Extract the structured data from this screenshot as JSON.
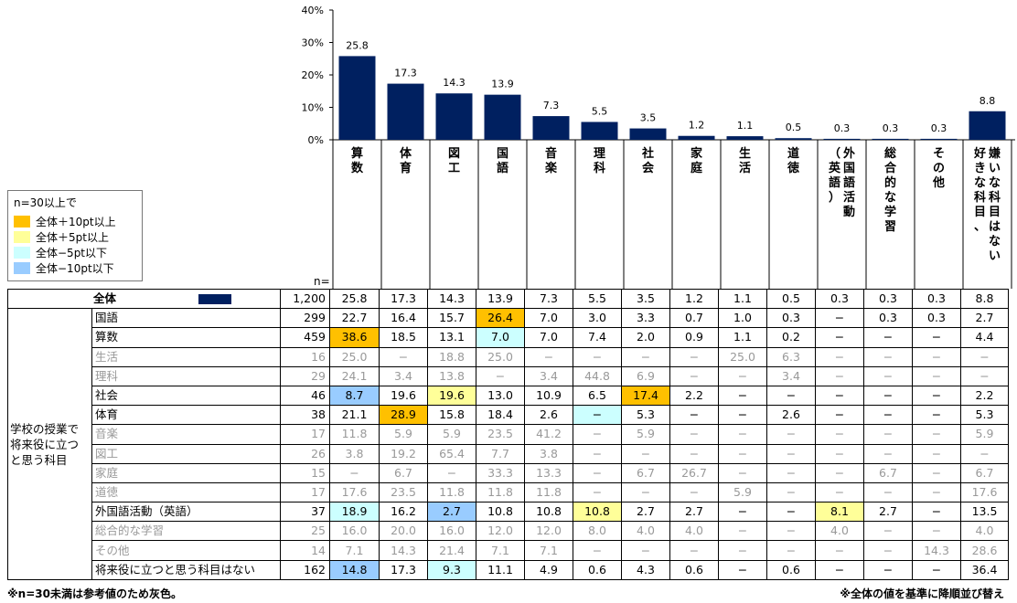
{
  "colors": {
    "bar": "#002060",
    "hl_plus10": "#ffc000",
    "hl_plus5": "#ffff99",
    "hl_minus5": "#ccffff",
    "hl_minus10": "#99ccff",
    "gray": "#999999"
  },
  "legend": {
    "title": "n=30以上で",
    "items": [
      {
        "label": "全体＋10pt以上",
        "color": "#ffc000"
      },
      {
        "label": "全体＋5pt以上",
        "color": "#ffff99"
      },
      {
        "label": "全体−5pt以下",
        "color": "#ccffff"
      },
      {
        "label": "全体−10pt以下",
        "color": "#99ccff"
      }
    ]
  },
  "n_label": "n=",
  "chart_data": {
    "type": "bar",
    "categories": [
      "算数",
      "体育",
      "図工",
      "国語",
      "音楽",
      "理科",
      "社会",
      "家庭",
      "生活",
      "道徳",
      "外国語活動（英語）",
      "総合的な学習",
      "その他",
      "好きな科目、嫌いな科目はない"
    ],
    "category_lines": [
      [
        "算",
        "数"
      ],
      [
        "体",
        "育"
      ],
      [
        "図",
        "工"
      ],
      [
        "国",
        "語"
      ],
      [
        "音",
        "楽"
      ],
      [
        "理",
        "科"
      ],
      [
        "社",
        "会"
      ],
      [
        "家",
        "庭"
      ],
      [
        "生",
        "活"
      ],
      [
        "道",
        "徳"
      ],
      [
        "（",
        "英",
        "語",
        "）"
      ],
      [
        "総",
        "合",
        "的",
        "な",
        "学",
        "習"
      ],
      [
        "そ",
        "の",
        "他"
      ],
      [
        "好",
        "き",
        "な",
        "科",
        "目",
        "、"
      ]
    ],
    "category_lines2": [
      [],
      [],
      [],
      [],
      [],
      [],
      [],
      [],
      [],
      [],
      [
        "外",
        "国",
        "語",
        "活",
        "動"
      ],
      [],
      [],
      [
        "嫌",
        "い",
        "な",
        "科",
        "目",
        "は",
        "な",
        "い"
      ]
    ],
    "values": [
      25.8,
      17.3,
      14.3,
      13.9,
      7.3,
      5.5,
      3.5,
      1.2,
      1.1,
      0.5,
      0.3,
      0.3,
      0.3,
      8.8
    ],
    "value_labels": [
      "25.8",
      "17.3",
      "14.3",
      "13.9",
      "7.3",
      "5.5",
      "3.5",
      "1.2",
      "1.1",
      "0.5",
      "0.3",
      "0.3",
      "0.3",
      "8.8"
    ],
    "ylim": [
      0,
      40
    ],
    "yticks": [
      "0%",
      "10%",
      "20%",
      "30%",
      "40%"
    ],
    "title": "",
    "xlabel": "",
    "ylabel": ""
  },
  "table": {
    "total_label": "全体",
    "total_n": "1,200",
    "total_values": [
      "25.8",
      "17.3",
      "14.3",
      "13.9",
      "7.3",
      "5.5",
      "3.5",
      "1.2",
      "1.1",
      "0.5",
      "0.3",
      "0.3",
      "0.3",
      "8.8"
    ],
    "group_label": "学校の授業で将来役に立つと思う科目",
    "rows": [
      {
        "label": "国語",
        "n": "299",
        "gray": false,
        "values": [
          "22.7",
          "16.4",
          "15.7",
          "26.4",
          "7.0",
          "3.0",
          "3.3",
          "0.7",
          "1.0",
          "0.3",
          "−",
          "0.3",
          "0.3",
          "2.7"
        ],
        "hl": [
          "",
          "",
          "",
          "hl1",
          "",
          "",
          "",
          "",
          "",
          "",
          "",
          "",
          "",
          ""
        ]
      },
      {
        "label": "算数",
        "n": "459",
        "gray": false,
        "values": [
          "38.6",
          "18.5",
          "13.1",
          "7.0",
          "7.0",
          "7.4",
          "2.0",
          "0.9",
          "1.1",
          "0.2",
          "−",
          "−",
          "−",
          "4.4"
        ],
        "hl": [
          "hl1",
          "",
          "",
          "hl3",
          "",
          "",
          "",
          "",
          "",
          "",
          "",
          "",
          "",
          ""
        ]
      },
      {
        "label": "生活",
        "n": "16",
        "gray": true,
        "values": [
          "25.0",
          "−",
          "18.8",
          "25.0",
          "−",
          "−",
          "−",
          "−",
          "25.0",
          "6.3",
          "−",
          "−",
          "−",
          "−"
        ],
        "hl": [
          "",
          "",
          "",
          "",
          "",
          "",
          "",
          "",
          "",
          "",
          "",
          "",
          "",
          ""
        ]
      },
      {
        "label": "理科",
        "n": "29",
        "gray": true,
        "values": [
          "24.1",
          "3.4",
          "13.8",
          "−",
          "3.4",
          "44.8",
          "6.9",
          "−",
          "−",
          "3.4",
          "−",
          "−",
          "−",
          "−"
        ],
        "hl": [
          "",
          "",
          "",
          "",
          "",
          "",
          "",
          "",
          "",
          "",
          "",
          "",
          "",
          ""
        ]
      },
      {
        "label": "社会",
        "n": "46",
        "gray": false,
        "values": [
          "8.7",
          "19.6",
          "19.6",
          "13.0",
          "10.9",
          "6.5",
          "17.4",
          "2.2",
          "−",
          "−",
          "−",
          "−",
          "−",
          "2.2"
        ],
        "hl": [
          "hl4",
          "",
          "hl2",
          "",
          "",
          "",
          "hl1",
          "",
          "",
          "",
          "",
          "",
          "",
          ""
        ]
      },
      {
        "label": "体育",
        "n": "38",
        "gray": false,
        "values": [
          "21.1",
          "28.9",
          "15.8",
          "18.4",
          "2.6",
          "−",
          "5.3",
          "−",
          "−",
          "2.6",
          "−",
          "−",
          "−",
          "5.3"
        ],
        "hl": [
          "",
          "hl1",
          "",
          "",
          "",
          "hl3",
          "",
          "",
          "",
          "",
          "",
          "",
          "",
          ""
        ]
      },
      {
        "label": "音楽",
        "n": "17",
        "gray": true,
        "values": [
          "11.8",
          "5.9",
          "5.9",
          "23.5",
          "41.2",
          "−",
          "5.9",
          "−",
          "−",
          "−",
          "−",
          "−",
          "−",
          "5.9"
        ],
        "hl": [
          "",
          "",
          "",
          "",
          "",
          "",
          "",
          "",
          "",
          "",
          "",
          "",
          "",
          ""
        ]
      },
      {
        "label": "図工",
        "n": "26",
        "gray": true,
        "values": [
          "3.8",
          "19.2",
          "65.4",
          "7.7",
          "3.8",
          "−",
          "−",
          "−",
          "−",
          "−",
          "−",
          "−",
          "−",
          "−"
        ],
        "hl": [
          "",
          "",
          "",
          "",
          "",
          "",
          "",
          "",
          "",
          "",
          "",
          "",
          "",
          ""
        ]
      },
      {
        "label": "家庭",
        "n": "15",
        "gray": true,
        "values": [
          "−",
          "6.7",
          "−",
          "33.3",
          "13.3",
          "−",
          "6.7",
          "26.7",
          "−",
          "−",
          "−",
          "6.7",
          "−",
          "6.7"
        ],
        "hl": [
          "",
          "",
          "",
          "",
          "",
          "",
          "",
          "",
          "",
          "",
          "",
          "",
          "",
          ""
        ]
      },
      {
        "label": "道徳",
        "n": "17",
        "gray": true,
        "values": [
          "17.6",
          "23.5",
          "11.8",
          "11.8",
          "11.8",
          "−",
          "−",
          "−",
          "5.9",
          "−",
          "−",
          "−",
          "−",
          "17.6"
        ],
        "hl": [
          "",
          "",
          "",
          "",
          "",
          "",
          "",
          "",
          "",
          "",
          "",
          "",
          "",
          ""
        ]
      },
      {
        "label": "外国語活動（英語）",
        "n": "37",
        "gray": false,
        "values": [
          "18.9",
          "16.2",
          "2.7",
          "10.8",
          "10.8",
          "10.8",
          "2.7",
          "2.7",
          "−",
          "−",
          "8.1",
          "2.7",
          "−",
          "13.5"
        ],
        "hl": [
          "hl3",
          "",
          "hl4",
          "",
          "",
          "hl2",
          "",
          "",
          "",
          "",
          "hl2",
          "",
          "",
          ""
        ]
      },
      {
        "label": "総合的な学習",
        "n": "25",
        "gray": true,
        "values": [
          "16.0",
          "20.0",
          "16.0",
          "12.0",
          "12.0",
          "8.0",
          "4.0",
          "4.0",
          "−",
          "−",
          "4.0",
          "−",
          "−",
          "4.0"
        ],
        "hl": [
          "",
          "",
          "",
          "",
          "",
          "",
          "",
          "",
          "",
          "",
          "",
          "",
          "",
          ""
        ]
      },
      {
        "label": "その他",
        "n": "14",
        "gray": true,
        "values": [
          "7.1",
          "14.3",
          "21.4",
          "7.1",
          "7.1",
          "−",
          "−",
          "−",
          "−",
          "−",
          "−",
          "−",
          "14.3",
          "28.6"
        ],
        "hl": [
          "",
          "",
          "",
          "",
          "",
          "",
          "",
          "",
          "",
          "",
          "",
          "",
          "",
          ""
        ]
      },
      {
        "label": "将来役に立つと思う科目はない",
        "n": "162",
        "gray": false,
        "values": [
          "14.8",
          "17.3",
          "9.3",
          "11.1",
          "4.9",
          "0.6",
          "4.3",
          "0.6",
          "−",
          "0.6",
          "−",
          "−",
          "−",
          "36.4"
        ],
        "hl": [
          "hl4",
          "",
          "hl3",
          "",
          "",
          "",
          "",
          "",
          "",
          "",
          "",
          "",
          "",
          ""
        ]
      }
    ]
  },
  "notes": {
    "left": "※n=30未満は参考値のため灰色。",
    "right": "※全体の値を基準に降順並び替え"
  }
}
